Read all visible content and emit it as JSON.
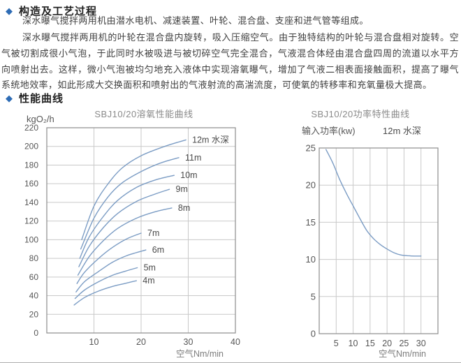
{
  "page": {
    "section1": {
      "bullet": "◆",
      "title": "构造及工艺过程"
    },
    "paragraph1": "深水曝气搅拌两用机由潜水电机、减速装置、叶轮、混合盘、支座和进气管等组成。",
    "paragraph2": "深水曝气搅拌两用机的叶轮在混合盘内旋转，吸入压缩空气。由于独特结构的叶轮与混合盘相对旋转。空气被切割成很小气泡，于此同时水被吸进与被切碎空气完全混合，气液混合体经由混合盘四周的流道以水平方向喷射出去。这样，微小气泡被均匀地充入液体中实现溶氧曝气，增加了气液二相表面接触面积，提高了曝气系统地效率，如此形成大交换面积和喷射出的气液射流的高湍流度，可使氧的转移率和充氧量极大提高。",
    "section2": {
      "bullet": "◆",
      "title": "性能曲线"
    }
  },
  "colors": {
    "accent": "#2e6cb5",
    "curve": "#7b9cc4",
    "grid": "#c9c9c9",
    "border": "#8c8c8c",
    "title_gray": "#8a8a8a",
    "tick_gray": "#565656",
    "label_dark": "#4a4a4a",
    "xlabel_gray": "#7d7d7d"
  },
  "chart_data": [
    {
      "type": "line",
      "title": "SBJ10/20溶氧性能曲线",
      "ylabel": "kgO₂/h",
      "xlabel": "空气Nm/min",
      "xlim": [
        0,
        40
      ],
      "ylim": [
        0,
        220
      ],
      "xticks": [
        10,
        20,
        30,
        40
      ],
      "yticks": [
        0,
        20,
        40,
        60,
        80,
        100,
        120,
        140,
        160,
        180,
        200,
        220
      ],
      "grid": true,
      "legend": "curve-end-labels",
      "series": [
        {
          "name": "4m",
          "x": [
            5.8,
            8,
            11,
            14,
            16.5,
            19
          ],
          "y": [
            30,
            38,
            45,
            50,
            53,
            56
          ]
        },
        {
          "name": "5m",
          "x": [
            6.0,
            8,
            11,
            14,
            16.5,
            19.2
          ],
          "y": [
            37,
            46,
            55,
            62,
            66,
            70
          ]
        },
        {
          "name": "6m",
          "x": [
            6.2,
            8,
            11,
            14,
            17,
            21
          ],
          "y": [
            44,
            55,
            66,
            76,
            83,
            89
          ]
        },
        {
          "name": "7m",
          "x": [
            6.4,
            8,
            11,
            14,
            17,
            20
          ],
          "y": [
            53,
            65,
            80,
            92,
            101,
            107
          ]
        },
        {
          "name": "8m",
          "x": [
            6.6,
            9,
            12,
            15,
            19,
            23,
            26.5
          ],
          "y": [
            62,
            82,
            99,
            112,
            123,
            130,
            134
          ]
        },
        {
          "name": "9m",
          "x": [
            6.8,
            9,
            12,
            15,
            19,
            23,
            26
          ],
          "y": [
            71,
            93,
            113,
            128,
            141,
            149,
            154
          ]
        },
        {
          "name": "10m",
          "x": [
            7.0,
            9,
            12,
            15,
            19,
            23,
            27
          ],
          "y": [
            80,
            103,
            125,
            142,
            156,
            164,
            169
          ]
        },
        {
          "name": "11m",
          "x": [
            7.2,
            10,
            13,
            16,
            20,
            24,
            28
          ],
          "y": [
            90,
            123,
            146,
            161,
            173,
            182,
            188
          ]
        },
        {
          "name": "12m 水深",
          "x": [
            7.4,
            10,
            13,
            16,
            20,
            25,
            29.5
          ],
          "y": [
            100,
            136,
            160,
            177,
            190,
            200,
            207
          ]
        }
      ]
    },
    {
      "type": "line",
      "title": "SBJ10/20功率特性曲线",
      "ylabel": "输入功率(kw)",
      "xlabel": "空气Nm/min",
      "annotation": "12m 水深",
      "xlim": [
        0,
        35
      ],
      "ylim": [
        0,
        25
      ],
      "xticks": [
        5,
        10,
        15,
        20,
        25,
        30
      ],
      "yticks": [
        0,
        5,
        10,
        15,
        20,
        25
      ],
      "grid": true,
      "legend": "none",
      "series": [
        {
          "name": "12m 水深",
          "x": [
            2,
            4,
            6,
            8,
            10,
            12,
            14,
            16,
            18,
            20,
            22,
            24,
            26,
            28,
            30
          ],
          "y": [
            24.8,
            23,
            20.8,
            18.9,
            17.2,
            15.5,
            13.9,
            12.8,
            12.0,
            11.4,
            10.9,
            10.6,
            10.5,
            10.45,
            10.45
          ]
        }
      ]
    }
  ]
}
